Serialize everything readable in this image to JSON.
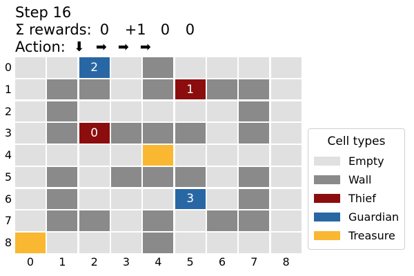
{
  "header": {
    "step_text": "Step 16",
    "rewards_label": "Σ rewards:",
    "rewards": [
      "0",
      "+1",
      "0",
      "0"
    ],
    "action_label": "Action:",
    "actions": [
      "⬇",
      "➡",
      "➡",
      "➡"
    ]
  },
  "colors": {
    "empty": "#e0e0e0",
    "wall": "#8a8a8a",
    "thief": "#8b0d0d",
    "guardian": "#2867a4",
    "treasure": "#f9b732",
    "grid_line": "#ffffff"
  },
  "grid": {
    "row_labels": [
      "0",
      "1",
      "2",
      "3",
      "4",
      "5",
      "6",
      "7",
      "8"
    ],
    "col_labels": [
      "0",
      "1",
      "2",
      "3",
      "4",
      "5",
      "6",
      "7",
      "8"
    ],
    "cells": [
      [
        "empty",
        "empty",
        "guardian",
        "empty",
        "wall",
        "empty",
        "empty",
        "empty",
        "empty"
      ],
      [
        "empty",
        "wall",
        "wall",
        "empty",
        "wall",
        "thief",
        "wall",
        "wall",
        "empty"
      ],
      [
        "empty",
        "wall",
        "empty",
        "empty",
        "empty",
        "empty",
        "empty",
        "wall",
        "empty"
      ],
      [
        "empty",
        "wall",
        "thief",
        "wall",
        "wall",
        "wall",
        "empty",
        "wall",
        "empty"
      ],
      [
        "empty",
        "empty",
        "empty",
        "empty",
        "treasure",
        "empty",
        "empty",
        "empty",
        "empty"
      ],
      [
        "empty",
        "wall",
        "empty",
        "wall",
        "wall",
        "wall",
        "empty",
        "wall",
        "empty"
      ],
      [
        "empty",
        "wall",
        "empty",
        "empty",
        "empty",
        "guardian",
        "empty",
        "wall",
        "empty"
      ],
      [
        "empty",
        "wall",
        "wall",
        "empty",
        "wall",
        "empty",
        "wall",
        "wall",
        "empty"
      ],
      [
        "treasure",
        "empty",
        "empty",
        "empty",
        "wall",
        "empty",
        "empty",
        "empty",
        "empty"
      ]
    ],
    "agents": [
      {
        "label": "2",
        "row": 0,
        "col": 2
      },
      {
        "label": "1",
        "row": 1,
        "col": 5
      },
      {
        "label": "0",
        "row": 3,
        "col": 2
      },
      {
        "label": "3",
        "row": 6,
        "col": 5
      }
    ]
  },
  "legend": {
    "title": "Cell types",
    "items": [
      {
        "label": "Empty",
        "type": "empty"
      },
      {
        "label": "Wall",
        "type": "wall"
      },
      {
        "label": "Thief",
        "type": "thief"
      },
      {
        "label": "Guardian",
        "type": "guardian"
      },
      {
        "label": "Treasure",
        "type": "treasure"
      }
    ]
  }
}
